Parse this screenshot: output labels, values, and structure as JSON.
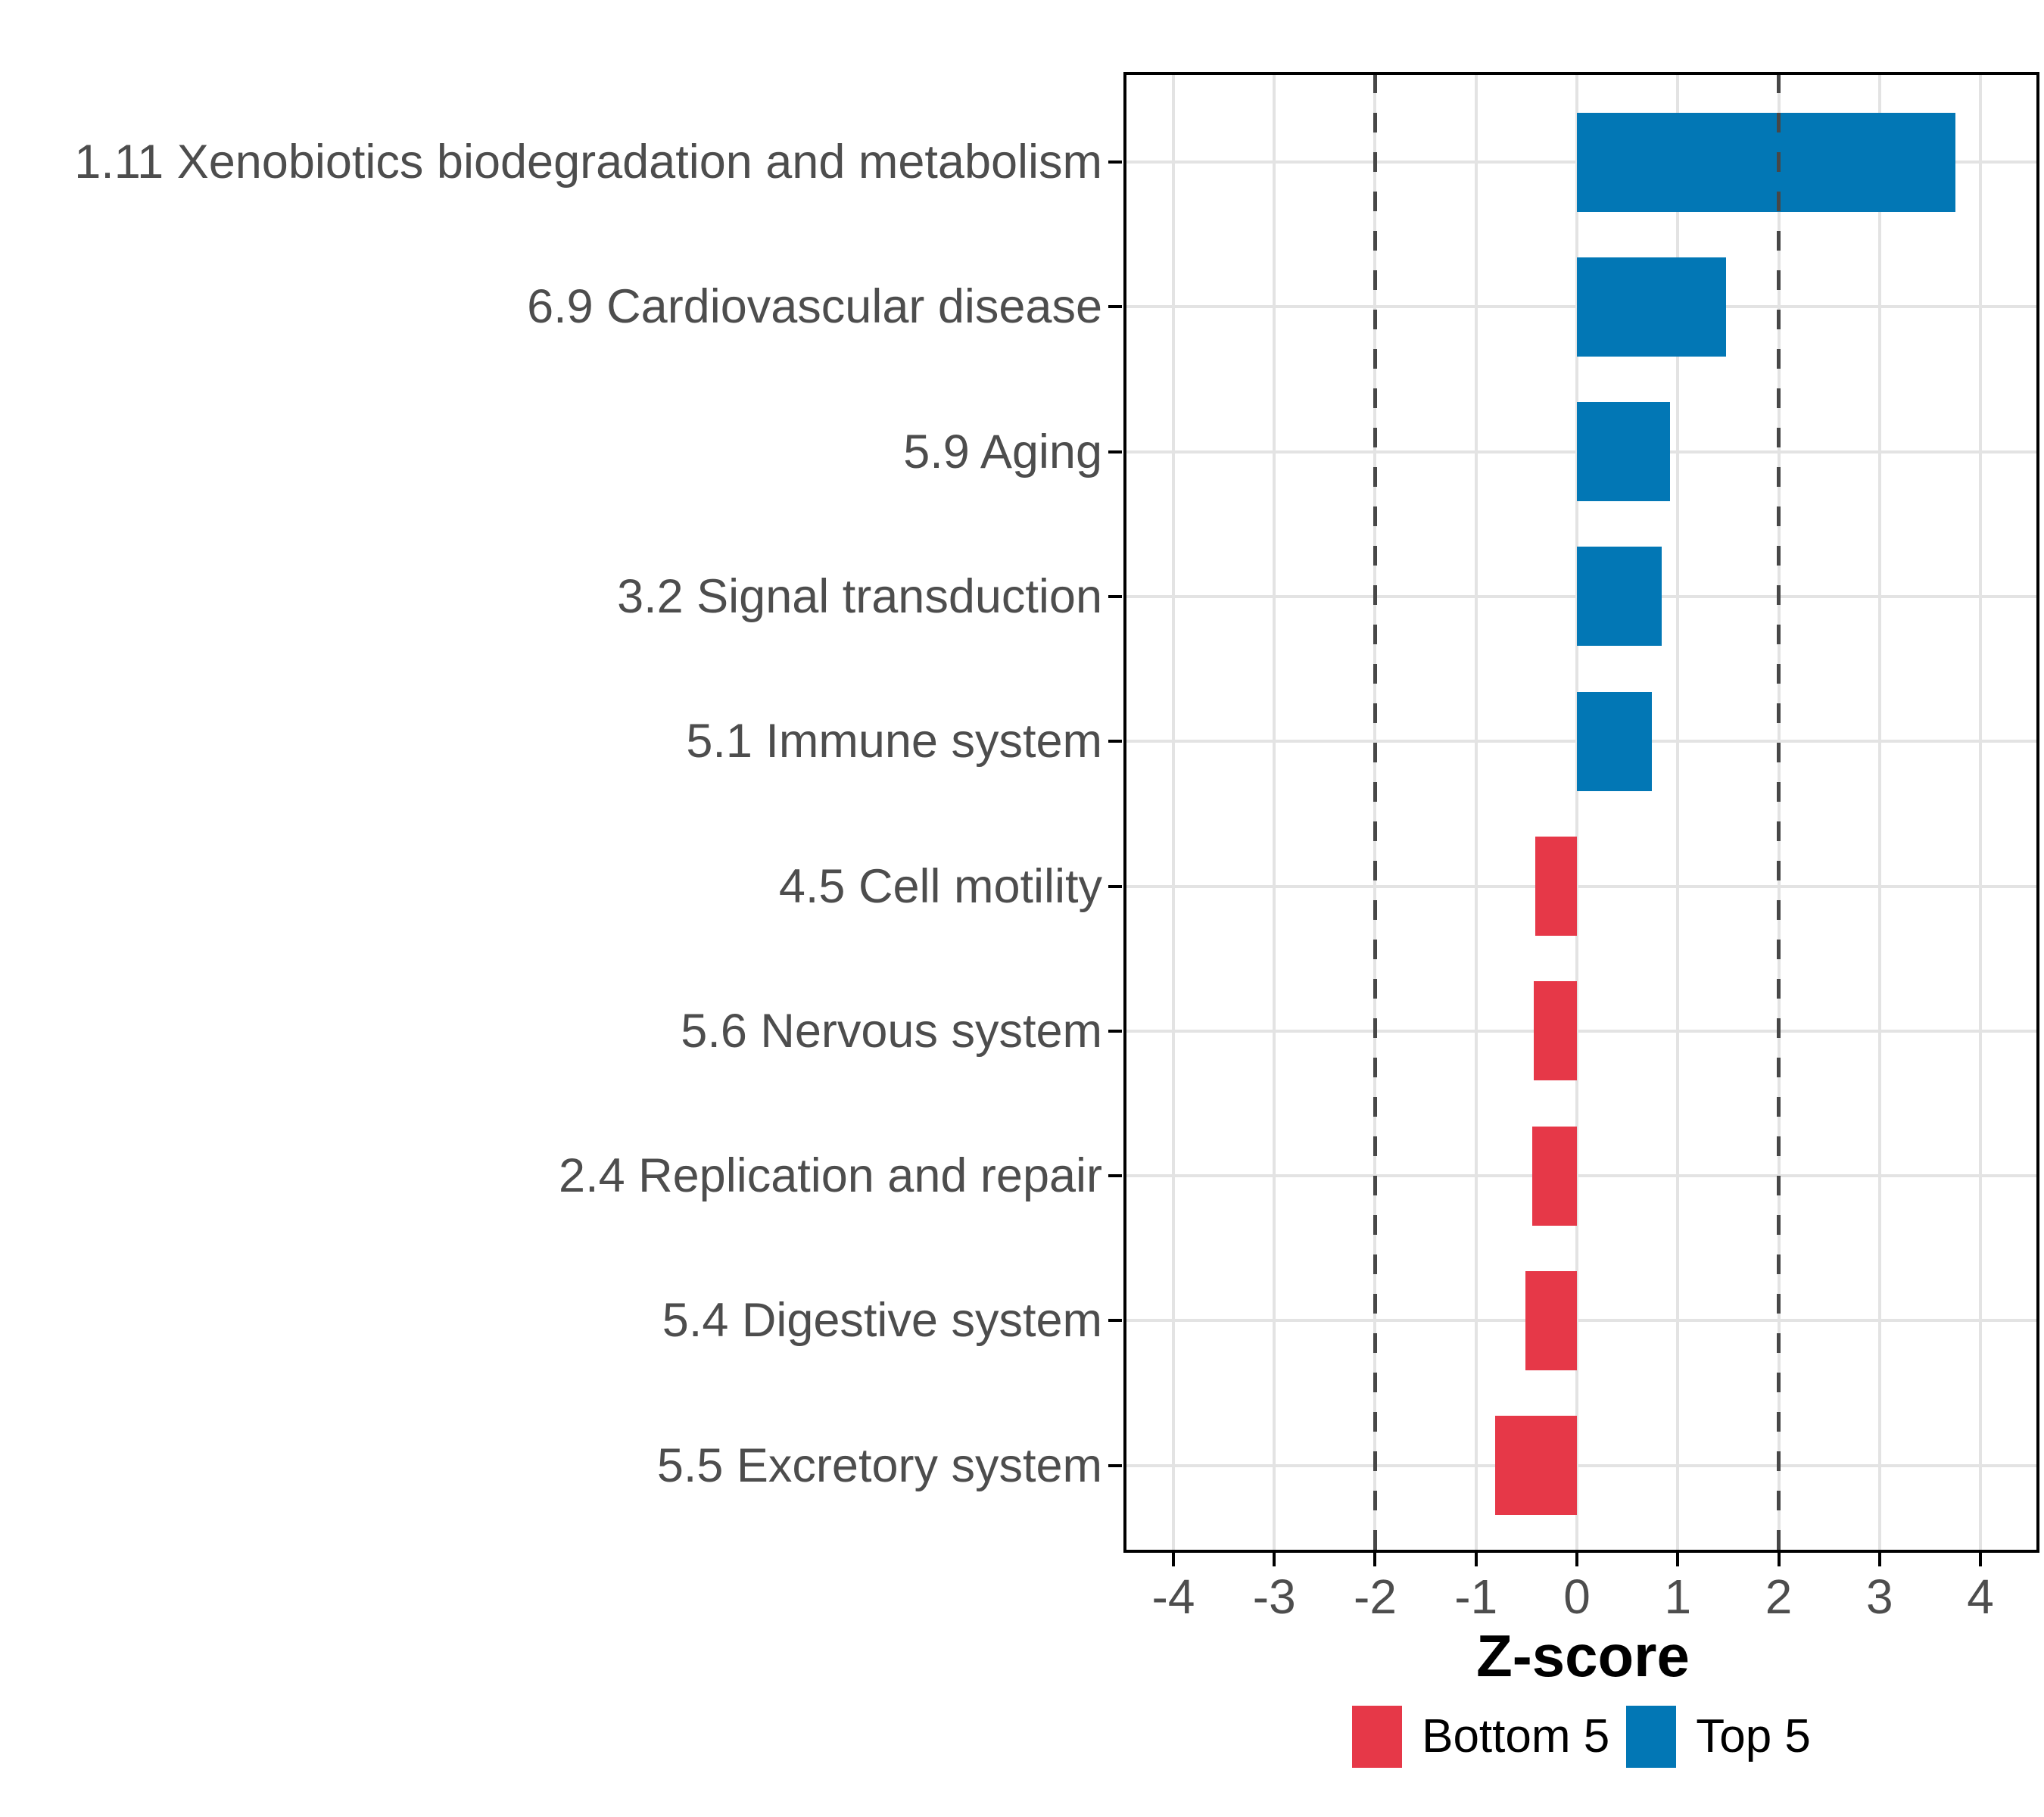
{
  "chart_data": {
    "type": "bar",
    "orientation": "horizontal",
    "title": "",
    "xlabel": "Z-score",
    "ylabel": "",
    "categories": [
      "1.11 Xenobiotics biodegradation and metabolism",
      "6.9 Cardiovascular disease",
      "5.9 Aging",
      "3.2 Signal transduction",
      "5.1 Immune system",
      "4.5 Cell motility",
      "5.6 Nervous system",
      "2.4 Replication and repair",
      "5.4 Digestive system",
      "5.5 Excretory system"
    ],
    "values": [
      3.75,
      1.48,
      0.92,
      0.84,
      0.74,
      -0.41,
      -0.43,
      -0.44,
      -0.51,
      -0.81
    ],
    "groups": [
      "Top 5",
      "Top 5",
      "Top 5",
      "Top 5",
      "Top 5",
      "Bottom 5",
      "Bottom 5",
      "Bottom 5",
      "Bottom 5",
      "Bottom 5"
    ],
    "x_ticks": [
      "-4",
      "-3",
      "-2",
      "-1",
      "0",
      "1",
      "2",
      "3",
      "4"
    ],
    "xlim": [
      -4.48,
      4.57
    ],
    "reference_lines": [
      -2,
      2
    ],
    "grid": "major vertical at integers, horizontal at category centers",
    "legend": {
      "position": "bottom",
      "entries": [
        {
          "label": "Bottom 5",
          "color": "#e63848"
        },
        {
          "label": "Top 5",
          "color": "#0277b5"
        }
      ]
    },
    "colors": {
      "top5": "#0277b5",
      "bottom5": "#e63848",
      "grid": "#e3e3e3",
      "reference_line": "#474747",
      "axis_text": "#4d4d4d",
      "axis_title": "#000000",
      "panel_border": "#000000",
      "tick": "#000000",
      "background": "#ffffff"
    }
  }
}
